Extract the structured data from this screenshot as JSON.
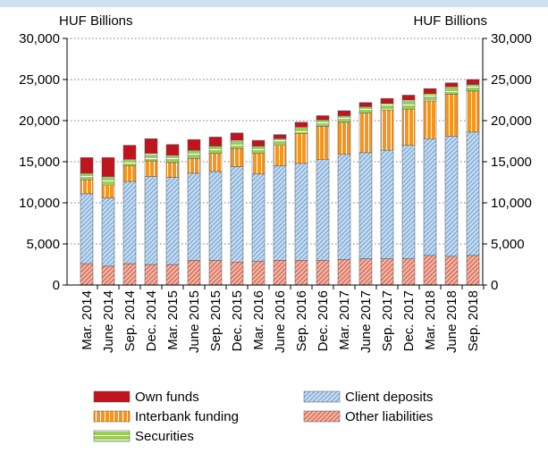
{
  "chart_data": {
    "type": "stacked_bar",
    "y_label": "HUF Billions",
    "y2_label": "HUF Billions",
    "categories": [
      "Mar. 2014",
      "June 2014",
      "Sep. 2014",
      "Dec. 2014",
      "Mar. 2015",
      "June 2015",
      "Sep. 2015",
      "Dec. 2015",
      "Mar. 2016",
      "June 2016",
      "Sep. 2016",
      "Dec. 2016",
      "Mar. 2017",
      "June 2017",
      "Sep. 2017",
      "Dec. 2017",
      "Mar. 2018",
      "June 2018",
      "Sep. 2018"
    ],
    "series": [
      {
        "name": "Other liabilities",
        "color": "#f2b6a6",
        "values": [
          2600,
          2300,
          2600,
          2500,
          2500,
          3000,
          3000,
          2800,
          2900,
          3000,
          3000,
          3000,
          3100,
          3200,
          3200,
          3200,
          3600,
          3500,
          3600
        ]
      },
      {
        "name": "Client deposits",
        "color": "#c4dcf2",
        "values": [
          8500,
          8300,
          10000,
          10700,
          10600,
          10600,
          10800,
          11600,
          10600,
          11500,
          11800,
          12300,
          12800,
          12900,
          13200,
          13800,
          14200,
          14600,
          15000
        ]
      },
      {
        "name": "Interbank funding",
        "color": "#f7941d",
        "values": [
          1700,
          1500,
          1900,
          1900,
          1800,
          1800,
          2200,
          2200,
          2500,
          2500,
          3600,
          4000,
          3900,
          4800,
          4900,
          4400,
          4600,
          5100,
          5000
        ]
      },
      {
        "name": "Securities",
        "color": "#9ccc5a",
        "values": [
          800,
          1100,
          800,
          900,
          900,
          1000,
          900,
          1000,
          900,
          800,
          800,
          800,
          800,
          800,
          800,
          1100,
          900,
          900,
          800
        ]
      },
      {
        "name": "Own funds",
        "color": "#c0141e",
        "values": [
          1900,
          2300,
          1700,
          1800,
          1300,
          1300,
          1100,
          900,
          700,
          500,
          600,
          500,
          600,
          500,
          600,
          600,
          600,
          500,
          600
        ]
      }
    ],
    "ylim": [
      0,
      30000
    ],
    "yticks": [
      0,
      {
        "value": 5000,
        "label": "5,000"
      },
      {
        "value": 10000,
        "label": "10,000"
      },
      {
        "value": 15000,
        "label": "15,000"
      },
      {
        "value": 20000,
        "label": "20,000"
      },
      {
        "value": 25000,
        "label": "25,000"
      },
      {
        "value": 30000,
        "label": "30,000"
      }
    ],
    "y2lim": [
      0,
      30000
    ],
    "y2ticks": [
      0,
      {
        "value": 5000,
        "label": "5,000"
      },
      {
        "value": 10000,
        "label": "10,000"
      },
      {
        "value": 15000,
        "label": "15,000"
      },
      {
        "value": 20000,
        "label": "20,000"
      },
      {
        "value": 25000,
        "label": "25,000"
      },
      {
        "value": 30000,
        "label": "30,000"
      }
    ],
    "grid": true
  }
}
